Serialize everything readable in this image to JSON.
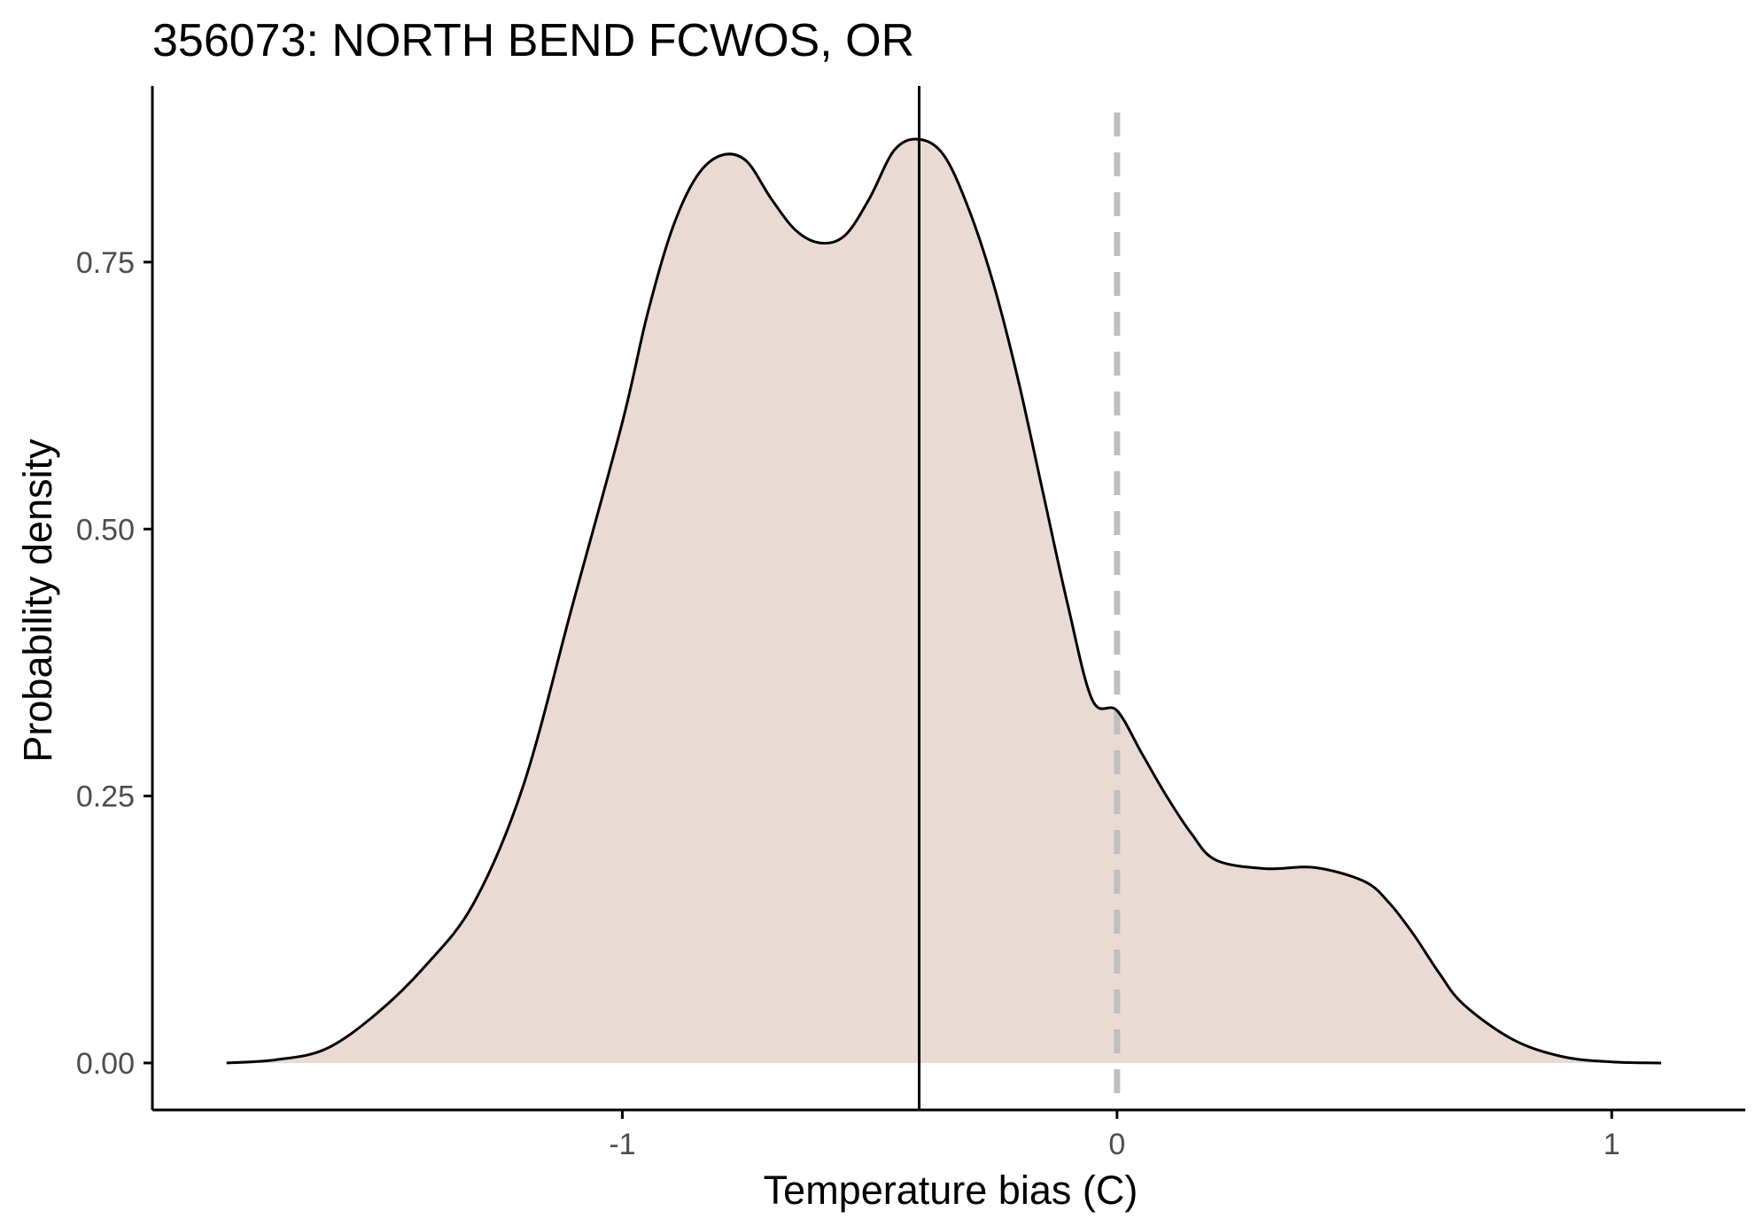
{
  "chart_data": {
    "type": "area",
    "title": "356073: NORTH BEND FCWOS, OR",
    "xlabel": "Temperature bias (C)",
    "ylabel": "Probability density",
    "xlim": [
      -1.95,
      1.27
    ],
    "ylim": [
      -0.044,
      0.915
    ],
    "x_ticks": [
      -1,
      0,
      1
    ],
    "x_tick_labels": [
      "-1",
      "0",
      "1"
    ],
    "y_ticks": [
      0,
      0.25,
      0.5,
      0.75
    ],
    "y_tick_labels": [
      "0.00",
      "0.25",
      "0.50",
      "0.75"
    ],
    "grid": false,
    "legend": false,
    "colors": {
      "fill": "#e9dad4",
      "line": "#000000",
      "reference_line": "#bfbfbf"
    },
    "reference_lines": [
      {
        "axis": "x",
        "value": -0.4,
        "style": "solid",
        "color": "#000000"
      },
      {
        "axis": "x",
        "value": 0,
        "style": "dashed",
        "color": "#bfbfbf"
      }
    ],
    "series": [
      {
        "x": [
          -1.8,
          -1.7,
          -1.6,
          -1.5,
          -1.4,
          -1.3,
          -1.2,
          -1.1,
          -1.0,
          -0.95,
          -0.9,
          -0.85,
          -0.8,
          -0.75,
          -0.7,
          -0.65,
          -0.6,
          -0.55,
          -0.5,
          -0.45,
          -0.4,
          -0.35,
          -0.3,
          -0.25,
          -0.2,
          -0.15,
          -0.1,
          -0.05,
          0.0,
          0.05,
          0.1,
          0.15,
          0.2,
          0.3,
          0.4,
          0.5,
          0.55,
          0.6,
          0.65,
          0.7,
          0.8,
          0.9,
          1.0,
          1.1
        ],
        "y": [
          0.0,
          0.003,
          0.013,
          0.045,
          0.09,
          0.15,
          0.26,
          0.43,
          0.6,
          0.7,
          0.78,
          0.83,
          0.85,
          0.845,
          0.81,
          0.78,
          0.768,
          0.775,
          0.81,
          0.855,
          0.865,
          0.85,
          0.8,
          0.73,
          0.64,
          0.535,
          0.43,
          0.34,
          0.33,
          0.29,
          0.25,
          0.215,
          0.19,
          0.182,
          0.183,
          0.17,
          0.15,
          0.12,
          0.085,
          0.055,
          0.022,
          0.006,
          0.001,
          0.0
        ]
      }
    ]
  }
}
